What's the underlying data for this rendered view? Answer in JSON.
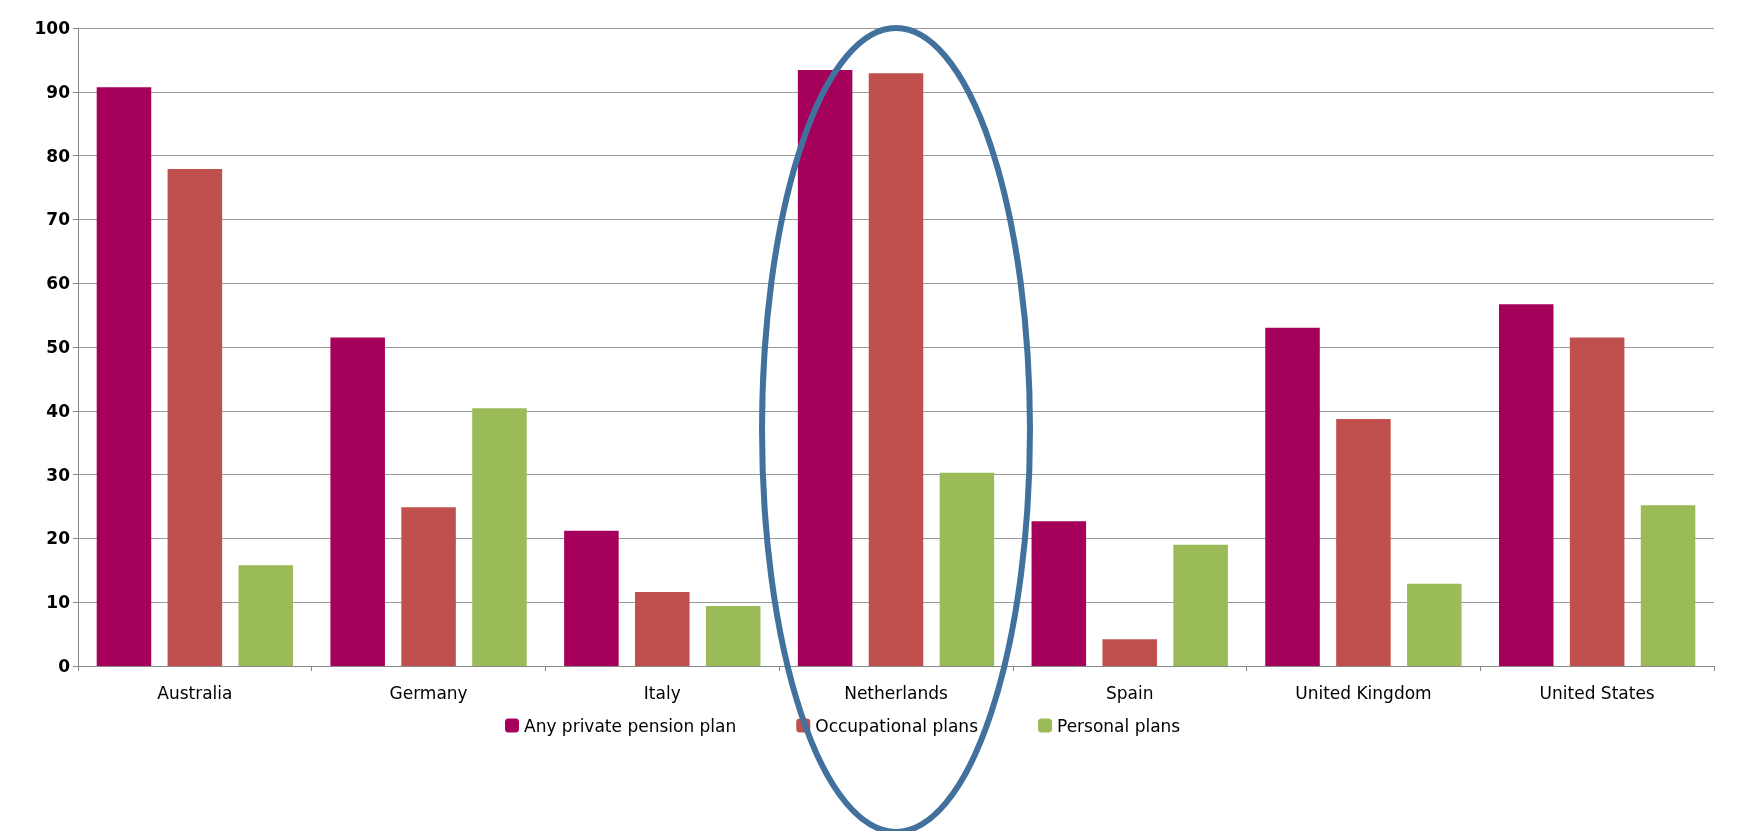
{
  "chart_data": {
    "type": "bar",
    "categories": [
      "Australia",
      "Germany",
      "Italy",
      "Netherlands",
      "Spain",
      "United Kingdom",
      "United States"
    ],
    "series": [
      {
        "name": "Any private pension plan",
        "color": "#a5005a",
        "values": [
          90.7,
          51.5,
          21.2,
          93.4,
          22.7,
          53,
          56.7
        ]
      },
      {
        "name": "Occupational plans",
        "color": "#c0504d",
        "values": [
          77.9,
          24.9,
          11.6,
          92.9,
          4.2,
          38.7,
          51.5
        ]
      },
      {
        "name": "Personal plans",
        "color": "#9bbb59",
        "values": [
          15.8,
          40.4,
          9.4,
          30.3,
          19,
          12.9,
          25.2
        ]
      }
    ],
    "ylim": [
      0,
      100
    ],
    "yticks": [
      0,
      10,
      20,
      30,
      40,
      50,
      60,
      70,
      80,
      90,
      100
    ],
    "grid": "y",
    "legend": "bottom"
  }
}
